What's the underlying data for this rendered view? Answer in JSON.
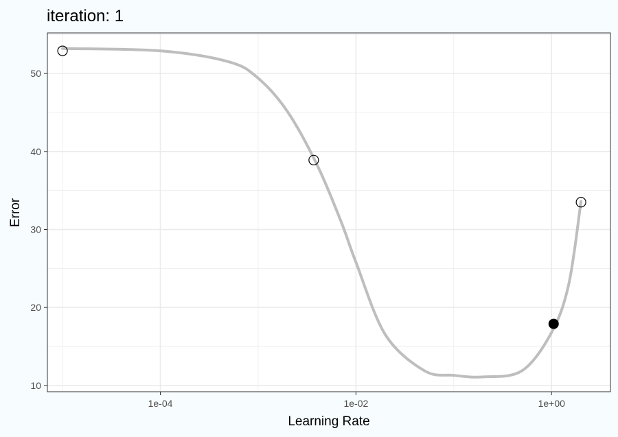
{
  "chart_data": {
    "type": "line",
    "title": "iteration: 1",
    "xlabel": "Learning Rate",
    "ylabel": "Error",
    "x_scale": "log10",
    "xlim": [
      7e-06,
      4.0
    ],
    "ylim": [
      9.2,
      55.2
    ],
    "x_ticks": [
      0.0001,
      0.01,
      1
    ],
    "x_tick_labels": [
      "1e-04",
      "1e-02",
      "1e+00"
    ],
    "y_ticks": [
      10,
      20,
      30,
      40,
      50
    ],
    "y_tick_labels": [
      "10",
      "20",
      "30",
      "40",
      "50"
    ],
    "grid": true,
    "curve": {
      "x": [
        1e-05,
        0.0001,
        0.0005,
        0.001,
        0.002,
        0.004,
        0.007,
        0.01,
        0.02,
        0.05,
        0.1,
        0.2,
        0.5,
        1.0,
        1.5,
        2.0
      ],
      "y": [
        53.2,
        52.9,
        51.5,
        49.4,
        45.1,
        38.3,
        31.1,
        25.8,
        16.5,
        11.9,
        11.3,
        11.1,
        11.9,
        16.8,
        23.0,
        33.6
      ]
    },
    "points": [
      {
        "x": 1e-05,
        "y": 52.9,
        "filled": false
      },
      {
        "x": 0.0037,
        "y": 38.9,
        "filled": false
      },
      {
        "x": 2.0,
        "y": 33.5,
        "filled": false
      },
      {
        "x": 1.05,
        "y": 17.9,
        "filled": true
      }
    ],
    "colors": {
      "background": "#F7FCFF",
      "panel": "#FFFFFF",
      "grid": "#EBEBEB",
      "curve": "#BEBEBE",
      "point": "#000000",
      "border": "#333333"
    }
  }
}
